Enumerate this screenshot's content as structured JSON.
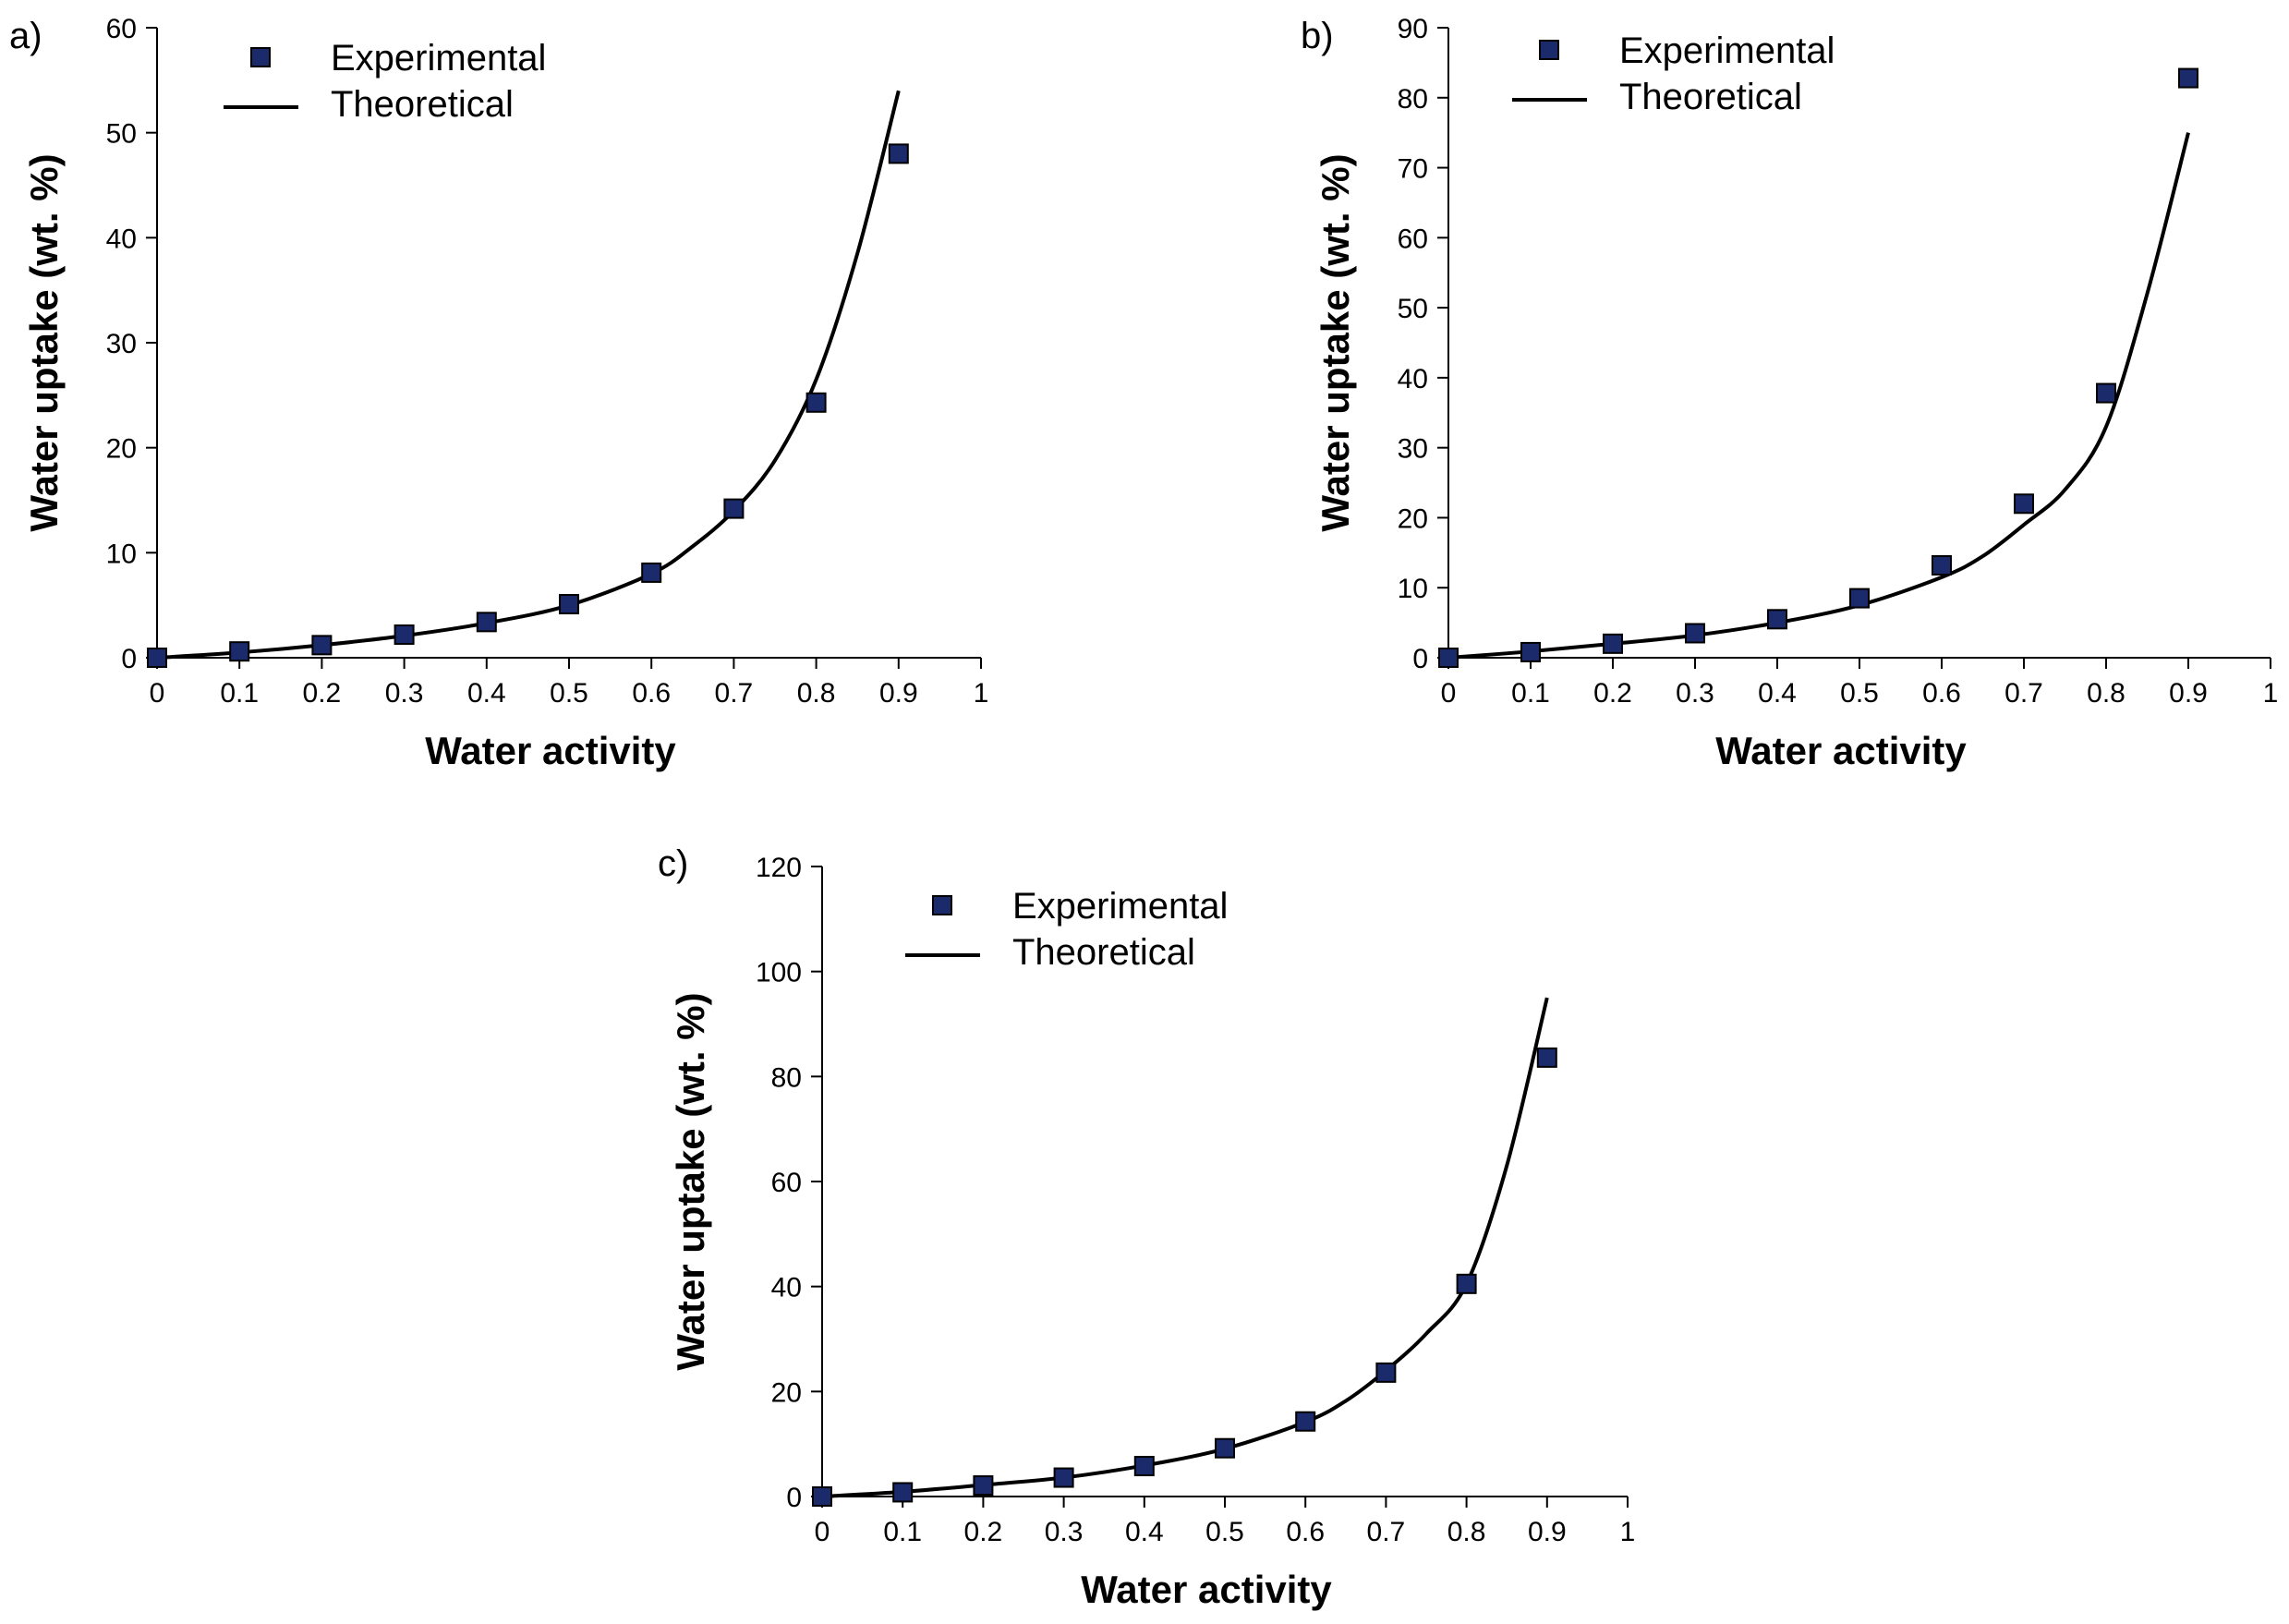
{
  "colors": {
    "marker": "#1b2a6b",
    "line": "#000000"
  },
  "legend": {
    "experimental": "Experimental",
    "theoretical": "Theoretical"
  },
  "chart_data": [
    {
      "id": "a",
      "panel_label": "a)",
      "type": "scatter+line",
      "xlabel": "Water activity",
      "ylabel": "Water uptake (wt. %)",
      "xlim": [
        0,
        1
      ],
      "ylim": [
        0,
        60
      ],
      "xticks": [
        "0",
        "0.1",
        "0.2",
        "0.3",
        "0.4",
        "0.5",
        "0.6",
        "0.7",
        "0.8",
        "0.9",
        "1"
      ],
      "yticks": [
        "0",
        "10",
        "20",
        "30",
        "40",
        "50",
        "60"
      ],
      "series": [
        {
          "name": "Experimental",
          "kind": "markers",
          "x": [
            0,
            0.1,
            0.2,
            0.3,
            0.4,
            0.5,
            0.6,
            0.7,
            0.8,
            0.9
          ],
          "y": [
            0,
            0.6,
            1.2,
            2.2,
            3.4,
            5.1,
            8.1,
            14.2,
            24.3,
            48.0
          ]
        },
        {
          "name": "Theoretical",
          "kind": "line",
          "x": [
            0,
            0.1,
            0.2,
            0.3,
            0.4,
            0.5,
            0.6,
            0.65,
            0.7,
            0.75,
            0.8,
            0.85,
            0.9
          ],
          "y": [
            0,
            0.5,
            1.2,
            2.1,
            3.3,
            5.0,
            8.0,
            10.6,
            14.0,
            18.8,
            26.5,
            38.5,
            54.0
          ]
        }
      ]
    },
    {
      "id": "b",
      "panel_label": "b)",
      "type": "scatter+line",
      "xlabel": "Water activity",
      "ylabel": "Water uptake (wt. %)",
      "xlim": [
        0,
        1
      ],
      "ylim": [
        0,
        90
      ],
      "xticks": [
        "0",
        "0.1",
        "0.2",
        "0.3",
        "0.4",
        "0.5",
        "0.6",
        "0.7",
        "0.8",
        "0.9",
        "1"
      ],
      "yticks": [
        "0",
        "10",
        "20",
        "30",
        "40",
        "50",
        "60",
        "70",
        "80",
        "90"
      ],
      "series": [
        {
          "name": "Experimental",
          "kind": "markers",
          "x": [
            0,
            0.1,
            0.2,
            0.3,
            0.4,
            0.5,
            0.6,
            0.7,
            0.8,
            0.9
          ],
          "y": [
            0,
            0.8,
            2.0,
            3.5,
            5.5,
            8.5,
            13.2,
            22.0,
            37.8,
            82.8
          ]
        },
        {
          "name": "Theoretical",
          "kind": "line",
          "x": [
            0,
            0.1,
            0.2,
            0.3,
            0.4,
            0.5,
            0.6,
            0.65,
            0.7,
            0.75,
            0.8,
            0.85,
            0.9
          ],
          "y": [
            0,
            0.9,
            2.0,
            3.2,
            5.0,
            7.5,
            11.5,
            14.5,
            19.0,
            24.0,
            33.0,
            52.0,
            75.0
          ]
        }
      ]
    },
    {
      "id": "c",
      "panel_label": "c)",
      "type": "scatter+line",
      "xlabel": "Water activity",
      "ylabel": "Water uptake (wt. %)",
      "xlim": [
        0,
        1
      ],
      "ylim": [
        0,
        120
      ],
      "xticks": [
        "0",
        "0.1",
        "0.2",
        "0.3",
        "0.4",
        "0.5",
        "0.6",
        "0.7",
        "0.8",
        "0.9",
        "1"
      ],
      "yticks": [
        "0",
        "20",
        "40",
        "60",
        "80",
        "100",
        "120"
      ],
      "series": [
        {
          "name": "Experimental",
          "kind": "markers",
          "x": [
            0,
            0.1,
            0.2,
            0.3,
            0.4,
            0.5,
            0.6,
            0.7,
            0.8,
            0.9
          ],
          "y": [
            0,
            0.8,
            2.1,
            3.6,
            5.8,
            9.2,
            14.3,
            23.6,
            40.5,
            83.6
          ]
        },
        {
          "name": "Theoretical",
          "kind": "line",
          "x": [
            0,
            0.1,
            0.2,
            0.3,
            0.4,
            0.5,
            0.6,
            0.65,
            0.7,
            0.75,
            0.8,
            0.85,
            0.9
          ],
          "y": [
            0,
            0.9,
            2.2,
            3.6,
            5.9,
            9.1,
            14.2,
            18.2,
            24.0,
            31.0,
            40.5,
            63.0,
            95.0
          ]
        }
      ]
    }
  ]
}
